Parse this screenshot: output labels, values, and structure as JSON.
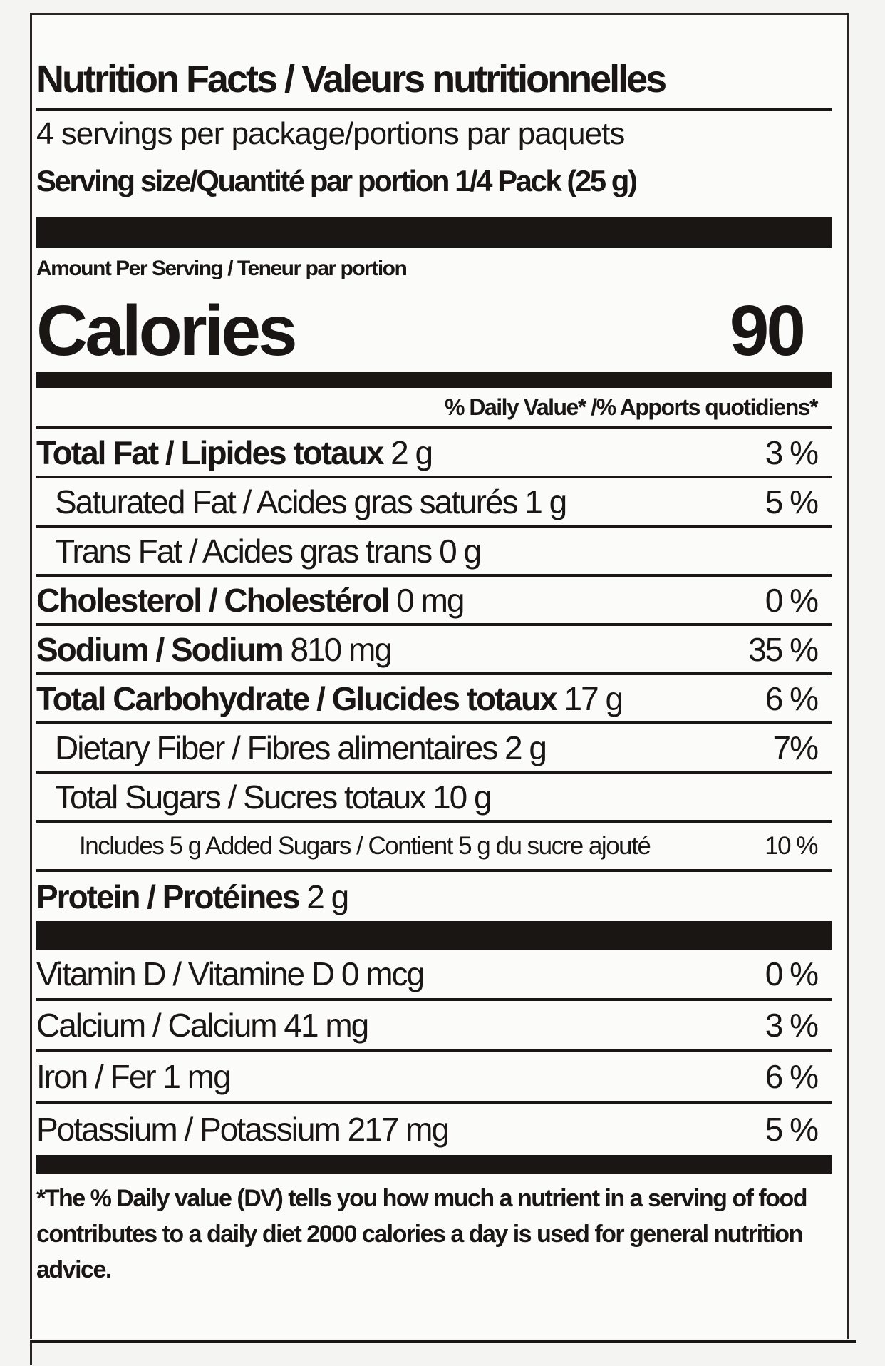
{
  "title": "Nutrition Facts / Valeurs nutritionnelles",
  "servings_per_package": "4 servings per package/portions par paquets",
  "serving_size": "Serving size/Quantité par portion 1/4 Pack (25 g)",
  "amount_per_serving": "Amount Per Serving / Teneur par portion",
  "calories_label": "Calories",
  "calories_value": "90",
  "daily_value_header": "% Daily Value* /% Apports quotidiens*",
  "nutrients": [
    {
      "name": "Total Fat / Lipides totaux",
      "amount": "2 g",
      "dv": "3 %",
      "bold": true,
      "indent": 0
    },
    {
      "name": "Saturated Fat / Acides gras saturés",
      "amount": "1 g",
      "dv": "5 %",
      "bold": false,
      "indent": 1
    },
    {
      "name": "Trans Fat / Acides gras trans",
      "amount": "0 g",
      "dv": "",
      "bold": false,
      "indent": 1
    },
    {
      "name": "Cholesterol / Cholestérol",
      "amount": "0 mg",
      "dv": "0 %",
      "bold": true,
      "indent": 0
    },
    {
      "name": "Sodium / Sodium",
      "amount": "810 mg",
      "dv": "35 %",
      "bold": true,
      "indent": 0
    },
    {
      "name": "Total Carbohydrate / Glucides totaux",
      "amount": "17 g",
      "dv": "6 %",
      "bold": true,
      "indent": 0
    },
    {
      "name": "Dietary Fiber / Fibres alimentaires",
      "amount": "2 g",
      "dv": "7%",
      "bold": false,
      "indent": 1
    },
    {
      "name": "Total Sugars / Sucres totaux",
      "amount": "10 g",
      "dv": "",
      "bold": false,
      "indent": 1
    },
    {
      "name": "Includes 5 g Added Sugars / Contient 5 g du sucre ajouté",
      "amount": "",
      "dv": "10 %",
      "bold": false,
      "indent": 2
    },
    {
      "name": "Protein / Protéines",
      "amount": "2 g",
      "dv": "",
      "bold": true,
      "indent": 0
    }
  ],
  "vitamins": [
    {
      "name": "Vitamin D / Vitamine D",
      "amount": "0 mcg",
      "dv": "0 %"
    },
    {
      "name": "Calcium / Calcium",
      "amount": "41 mg",
      "dv": "3 %"
    },
    {
      "name": "Iron / Fer",
      "amount": "1 mg",
      "dv": "6 %"
    },
    {
      "name": "Potassium / Potassium",
      "amount": "217 mg",
      "dv": "5 %"
    }
  ],
  "footnote": "*The % Daily value (DV) tells you how much a nutrient in a serving of food contributes to a daily diet 2000 calories a day is used for general nutrition advice."
}
